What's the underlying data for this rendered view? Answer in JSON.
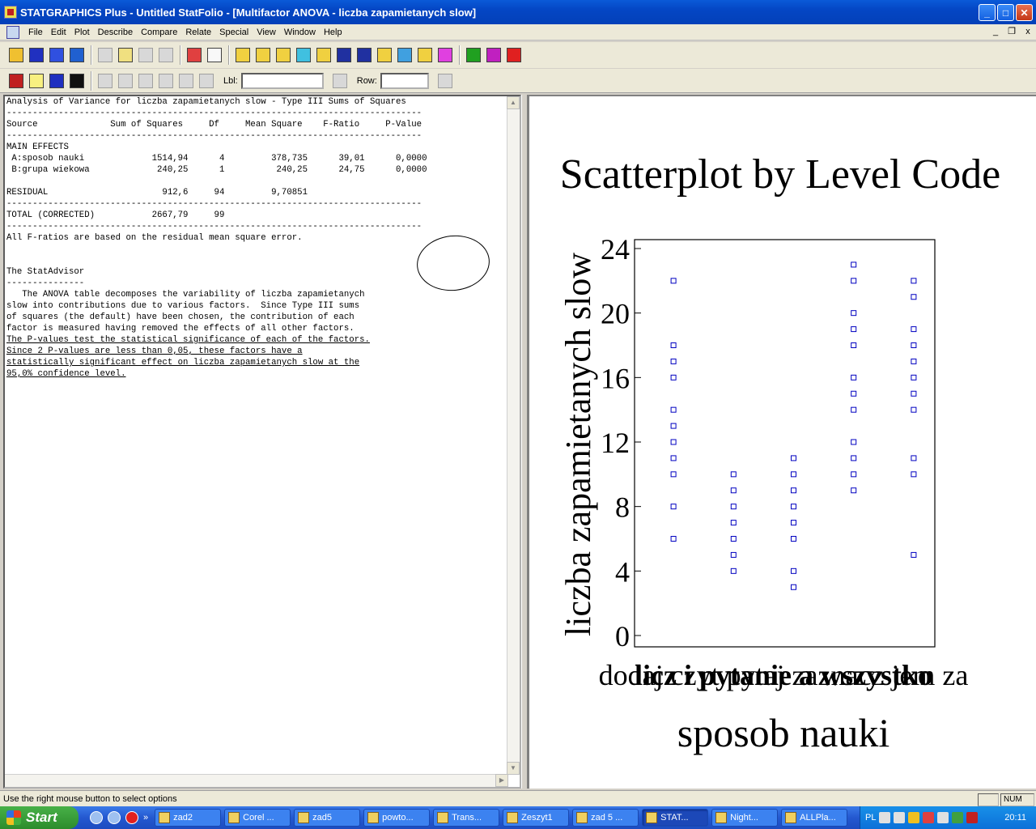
{
  "window": {
    "title": "STATGRAPHICS Plus - Untitled StatFolio - [Multifactor ANOVA - liczba zapamietanych slow]",
    "minimize_glyph": "_",
    "maximize_glyph": "□",
    "close_glyph": "✕"
  },
  "menu": {
    "items": [
      "File",
      "Edit",
      "Plot",
      "Describe",
      "Compare",
      "Relate",
      "Special",
      "View",
      "Window",
      "Help"
    ]
  },
  "mdi_controls": {
    "minimize": "_",
    "restore": "❐",
    "close": "x"
  },
  "toolbar2": {
    "lbl_label": "Lbl:",
    "lbl_value": "",
    "row_label": "Row:",
    "row_value": ""
  },
  "output": {
    "lines": [
      "Analysis of Variance for liczba zapamietanych slow - Type III Sums of Squares",
      "--------------------------------------------------------------------------------",
      "Source              Sum of Squares     Df     Mean Square    F-Ratio     P-Value",
      "--------------------------------------------------------------------------------",
      "MAIN EFFECTS",
      " A:sposob nauki             1514,94      4         378,735      39,01      0,0000",
      " B:grupa wiekowa             240,25      1          240,25      24,75      0,0000",
      "",
      "RESIDUAL                      912,6     94         9,70851",
      "--------------------------------------------------------------------------------",
      "TOTAL (CORRECTED)           2667,79     99",
      "--------------------------------------------------------------------------------",
      "All F-ratios are based on the residual mean square error.",
      "",
      "",
      "The StatAdvisor",
      "---------------",
      "   The ANOVA table decomposes the variability of liczba zapamietanych",
      "slow into contributions due to various factors.  Since Type III sums",
      "of squares (the default) have been chosen, the contribution of each",
      "factor is measured having removed the effects of all other factors.",
      "The P-values test the statistical significance of each of the factors.",
      "Since 2 P-values are less than 0,05, these factors have a",
      "statistically significant effect on liczba zapamietanych slow at the",
      "95,0% confidence level."
    ]
  },
  "chart_data": {
    "type": "scatter",
    "title": "Scatterplot by Level Code",
    "xlabel": "sposob nauki",
    "ylabel": "liczba zapamietanych slow",
    "ylim": [
      0,
      24
    ],
    "yticks": [
      0,
      4,
      8,
      12,
      16,
      20,
      24
    ],
    "xtick_text": "dodaj czyt pytaj zaznacz jem za",
    "x_overlap_text": "licz i pytanie a wszystko",
    "grid": false,
    "marker": "hollow-square",
    "marker_color": "#0000c0",
    "groups": [
      {
        "level": 1,
        "values": [
          22,
          18,
          17,
          16,
          14,
          13,
          12,
          11,
          10,
          8,
          6
        ]
      },
      {
        "level": 2,
        "values": [
          10,
          9,
          8,
          7,
          6,
          5,
          4
        ]
      },
      {
        "level": 3,
        "values": [
          11,
          10,
          9,
          8,
          7,
          6,
          4,
          3
        ]
      },
      {
        "level": 4,
        "values": [
          23,
          22,
          20,
          19,
          18,
          16,
          15,
          14,
          12,
          11,
          10,
          9
        ]
      },
      {
        "level": 5,
        "values": [
          22,
          21,
          19,
          18,
          17,
          16,
          15,
          14,
          11,
          10,
          5
        ]
      }
    ]
  },
  "status": {
    "message": "Use the right mouse button to select options",
    "num": "NUM"
  },
  "taskbar": {
    "start": "Start",
    "overflow": "»",
    "tasks": [
      "zad2",
      "Corel ...",
      "zad5",
      "powto...",
      "Trans...",
      "Zeszyt1",
      "zad 5 ...",
      "STAT...",
      "Night...",
      "ALLPla..."
    ],
    "active_task": "STAT...",
    "lang": "PL",
    "clock": "20:11"
  }
}
